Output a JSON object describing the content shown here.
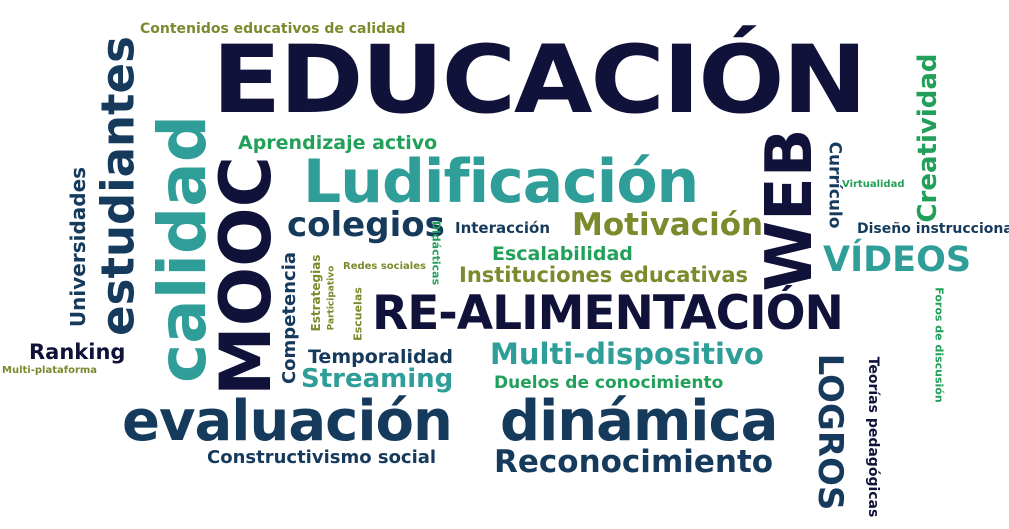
{
  "cloud": {
    "contenidos": "Contenidos educativos de calidad",
    "educacion": "EDUCACIÓN",
    "creatividad": "Creatividad",
    "aprendizaje": "Aprendizaje activo",
    "ludificacion": "Ludificación",
    "curriculo": "Currículo",
    "virtualidad": "Virtualidad",
    "diseno": "Diseño instruccional",
    "estudiantes": "estudiantes",
    "calidad": "calidad",
    "mooc": "MOOC",
    "universidades": "Universidades",
    "colegios": "colegios",
    "didacticas": "Didácticas",
    "interaccion": "Interacción",
    "motivacion": "Motivación",
    "web": "WEB",
    "videos": "VÍDEOS",
    "escalabilidad": "Escalabilidad",
    "instituciones": "Instituciones educativas",
    "redes": "Redes sociales",
    "competencia": "Competencia",
    "estrategias": "Estrategias",
    "participativo": "Participativo",
    "escuelas": "Escuelas",
    "realimentacion": "RE-ALIMENTACIÓN",
    "foros": "Foros de discusión",
    "ranking": "Ranking",
    "multiplataforma": "Multi-plataforma",
    "temporalidad": "Temporalidad",
    "multidispositivo": "Multi-dispositivo",
    "streaming": "Streaming",
    "duelos": "Duelos de conocimiento",
    "logros": "LOGROS",
    "teorias": "Teorías pedagógicas",
    "evaluacion": "evaluación",
    "dinamica": "dinámica",
    "constructivismo": "Constructivismo social",
    "reconocimiento": "Reconocimiento"
  },
  "colors": {
    "navy": "#10123a",
    "blue": "#153a5c",
    "teal": "#2f9e98",
    "olive": "#7a8a2c",
    "green": "#22a05a"
  }
}
